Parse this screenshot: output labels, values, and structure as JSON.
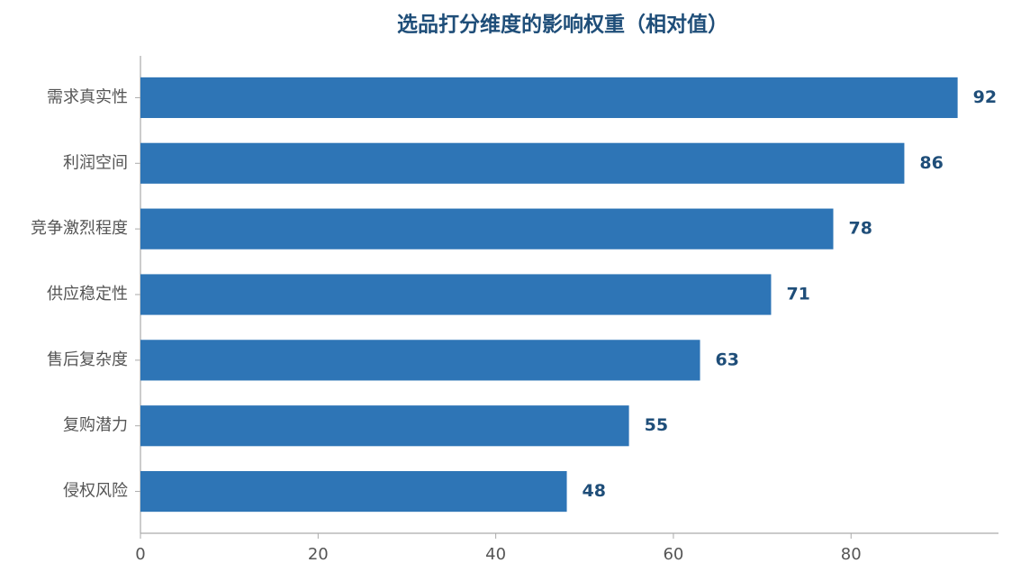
{
  "chart_data": {
    "type": "barh",
    "title": "选品打分维度的影响权重（相对值）",
    "categories": [
      "需求真实性",
      "利润空间",
      "竞争激烈程度",
      "供应稳定性",
      "售后复杂度",
      "复购潜力",
      "侵权风险"
    ],
    "values": [
      92,
      86,
      78,
      71,
      63,
      55,
      48
    ],
    "color": "#2e75b6",
    "label_color": "#1f4e79",
    "xlim": [
      0,
      96.6
    ],
    "xticks": [
      0,
      20,
      40,
      60,
      80
    ],
    "grid": false
  }
}
